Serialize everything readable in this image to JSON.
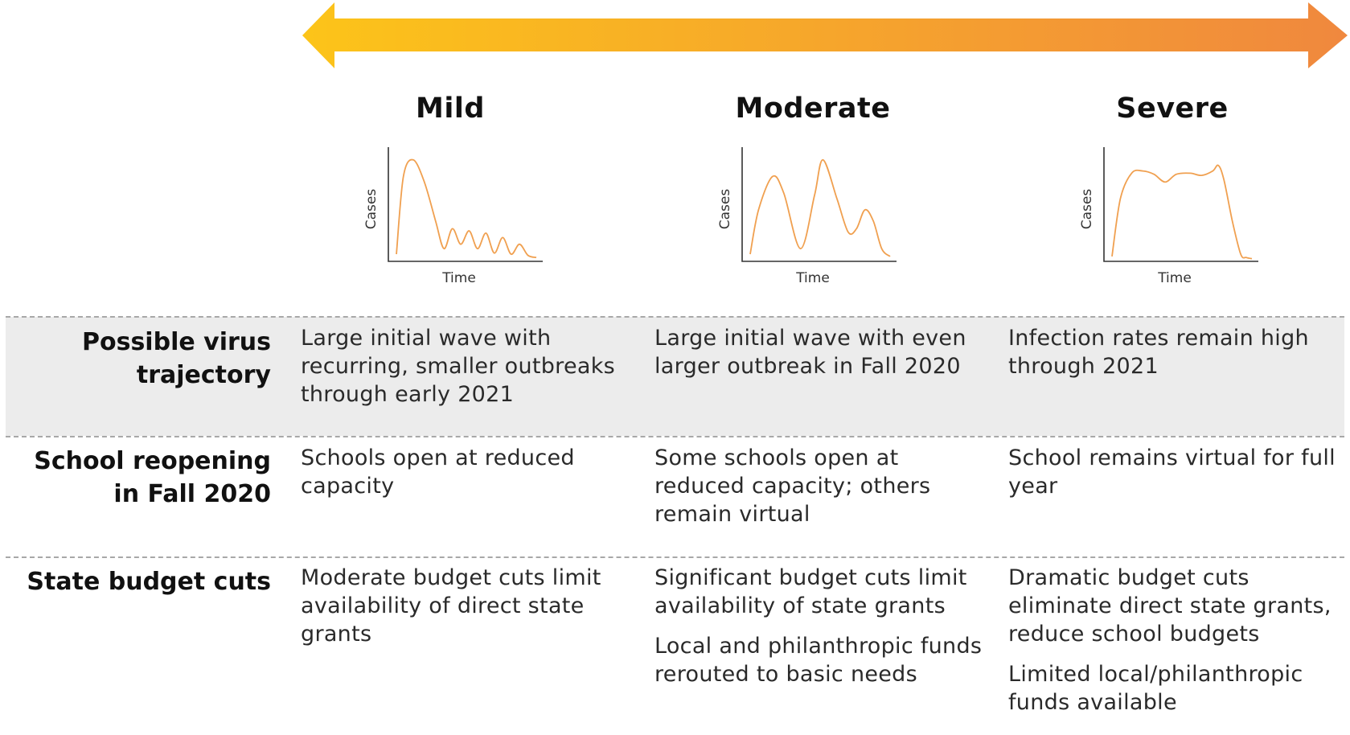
{
  "arrow": {
    "start_color": "#fcc419",
    "end_color": "#f0883e"
  },
  "scenarios": [
    {
      "title": "Mild",
      "ylabel": "Cases",
      "xlabel": "Time"
    },
    {
      "title": "Moderate",
      "ylabel": "Cases",
      "xlabel": "Time"
    },
    {
      "title": "Severe",
      "ylabel": "Cases",
      "xlabel": "Time"
    }
  ],
  "curve_color": "#f0a050",
  "chart_data": [
    {
      "type": "line",
      "title": "Mild",
      "xlabel": "Time",
      "ylabel": "Cases",
      "x": [
        0,
        5,
        12,
        20,
        28,
        34,
        40,
        46,
        52,
        58,
        64,
        70,
        76,
        82,
        88,
        94,
        100
      ],
      "y": [
        5,
        75,
        90,
        70,
        35,
        10,
        28,
        14,
        26,
        10,
        24,
        6,
        20,
        5,
        14,
        4,
        2
      ]
    },
    {
      "type": "line",
      "title": "Moderate",
      "xlabel": "Time",
      "ylabel": "Cases",
      "x": [
        0,
        6,
        16,
        24,
        36,
        46,
        52,
        62,
        70,
        76,
        82,
        88,
        94,
        100
      ],
      "y": [
        5,
        45,
        75,
        60,
        10,
        58,
        90,
        55,
        25,
        28,
        45,
        35,
        10,
        3
      ]
    },
    {
      "type": "line",
      "title": "Severe",
      "xlabel": "Time",
      "ylabel": "Cases",
      "x": [
        0,
        6,
        14,
        22,
        30,
        38,
        46,
        56,
        64,
        72,
        76,
        80,
        86,
        92,
        96,
        100
      ],
      "y": [
        3,
        55,
        78,
        80,
        77,
        70,
        77,
        78,
        76,
        80,
        85,
        72,
        35,
        5,
        2,
        1
      ]
    }
  ],
  "rows": [
    {
      "label": "Possible virus trajectory",
      "cells": [
        [
          "Large initial wave with recurring, smaller outbreaks through early 2021"
        ],
        [
          "Large initial wave with even larger outbreak in Fall 2020"
        ],
        [
          "Infection rates remain high through 2021"
        ]
      ]
    },
    {
      "label": "School reopening in Fall 2020",
      "cells": [
        [
          "Schools open at reduced capacity"
        ],
        [
          "Some schools open at reduced capacity; others remain virtual"
        ],
        [
          "School remains virtual for full year"
        ]
      ]
    },
    {
      "label": "State budget cuts",
      "cells": [
        [
          "Moderate budget cuts limit availability of direct state grants"
        ],
        [
          "Significant budget cuts limit availability of state grants",
          "Local and philanthropic funds rerouted to basic needs"
        ],
        [
          "Dramatic budget cuts eliminate direct state grants, reduce school budgets",
          "Limited local/philanthropic funds available"
        ]
      ]
    }
  ]
}
